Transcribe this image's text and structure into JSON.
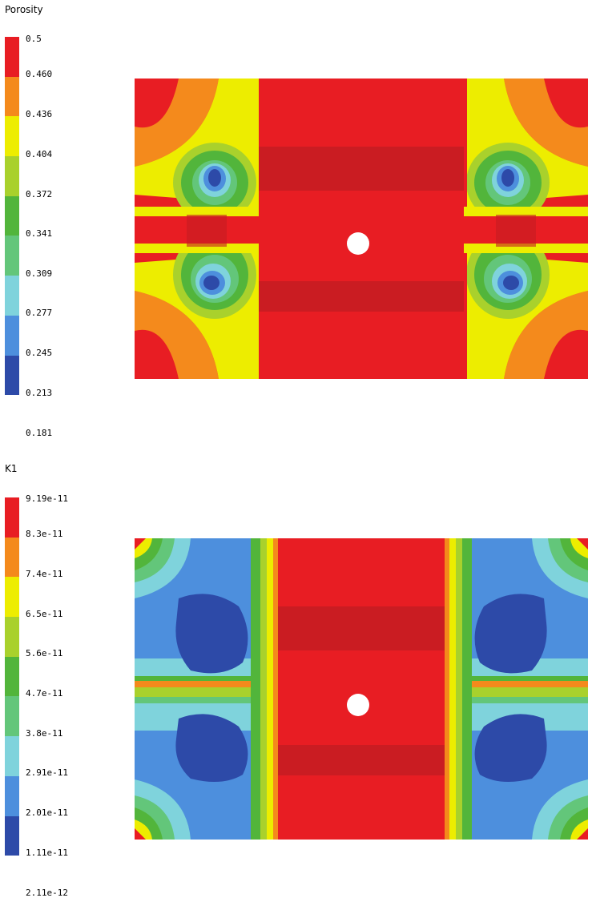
{
  "porosity": {
    "title": "Porosity",
    "ticks": [
      "0.5",
      "0.460",
      "0.436",
      "0.404",
      "0.372",
      "0.341",
      "0.309",
      "0.277",
      "0.245",
      "0.213",
      "0.181"
    ]
  },
  "k1": {
    "title": "K1",
    "ticks": [
      "9.19e-11",
      "8.3e-11",
      "7.4e-11",
      "6.5e-11",
      "5.6e-11",
      "4.7e-11",
      "3.8e-11",
      "2.91e-11",
      "2.01e-11",
      "1.11e-11",
      "2.11e-12"
    ]
  },
  "colors": {
    "scale": [
      "#e81d23",
      "#f48a1c",
      "#eded00",
      "#a9d12c",
      "#52b53b",
      "#63c67a",
      "#7fd3dc",
      "#4d8fdd",
      "#2d4aa8"
    ],
    "band_dark": "#c41c22",
    "hole": "#ffffff"
  }
}
